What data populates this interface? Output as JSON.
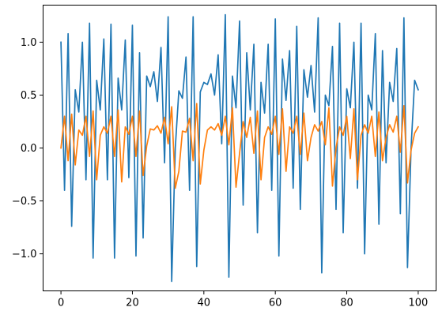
{
  "chart_data": {
    "type": "line",
    "title": "",
    "xlabel": "",
    "ylabel": "",
    "xlim": [
      -5,
      105
    ],
    "ylim": [
      -1.35,
      1.35
    ],
    "xticks": [
      0,
      20,
      40,
      60,
      80,
      100
    ],
    "yticks": [
      -1.0,
      -0.5,
      0.0,
      0.5,
      1.0
    ],
    "xtick_labels": [
      "0",
      "20",
      "40",
      "60",
      "80",
      "100"
    ],
    "ytick_labels": [
      "−1.0",
      "−0.5",
      "0.0",
      "0.5",
      "1.0"
    ],
    "grid": false,
    "legend": "none",
    "series": [
      {
        "color": "#1f77b4",
        "x": [
          0,
          1,
          2,
          3,
          4,
          5,
          6,
          7,
          8,
          9,
          10,
          11,
          12,
          13,
          14,
          15,
          16,
          17,
          18,
          19,
          20,
          21,
          22,
          23,
          24,
          25,
          26,
          27,
          28,
          29,
          30,
          31,
          32,
          33,
          34,
          35,
          36,
          37,
          38,
          39,
          40,
          41,
          42,
          43,
          44,
          45,
          46,
          47,
          48,
          49,
          50,
          51,
          52,
          53,
          54,
          55,
          56,
          57,
          58,
          59,
          60,
          61,
          62,
          63,
          64,
          65,
          66,
          67,
          68,
          69,
          70,
          71,
          72,
          73,
          74,
          75,
          76,
          77,
          78,
          79,
          80,
          81,
          82,
          83,
          84,
          85,
          86,
          87,
          88,
          89,
          90,
          91,
          92,
          93,
          94,
          95,
          96,
          97,
          98,
          99,
          100
        ],
        "y": [
          1.0,
          -0.4,
          1.08,
          -0.74,
          0.55,
          0.34,
          1.0,
          -0.3,
          1.18,
          -1.04,
          0.64,
          0.36,
          1.03,
          -0.3,
          1.17,
          -1.04,
          0.66,
          0.36,
          1.02,
          -0.28,
          1.16,
          -1.02,
          0.9,
          -0.85,
          0.68,
          0.58,
          0.72,
          0.44,
          0.95,
          -0.14,
          1.24,
          -1.26,
          0.0,
          0.54,
          0.47,
          0.86,
          -0.4,
          1.24,
          -1.12,
          0.53,
          0.62,
          0.6,
          0.7,
          0.5,
          0.88,
          0.04,
          1.26,
          -1.22,
          0.68,
          0.38,
          1.2,
          -0.54,
          0.9,
          0.36,
          0.98,
          -0.8,
          0.62,
          0.33,
          0.98,
          -0.4,
          1.22,
          -1.02,
          0.84,
          0.45,
          0.92,
          -0.38,
          1.15,
          -0.58,
          0.74,
          0.48,
          0.78,
          0.34,
          1.23,
          -1.18,
          0.5,
          0.4,
          0.96,
          -0.58,
          1.18,
          -0.8,
          0.56,
          0.38,
          1.0,
          -0.38,
          1.18,
          -1.0,
          0.5,
          0.36,
          1.08,
          -0.72,
          0.92,
          -0.14,
          0.62,
          0.44,
          0.94,
          -0.62,
          1.23,
          -1.13,
          0.0,
          0.64,
          0.55
        ]
      },
      {
        "color": "#ff7f0e",
        "x": [
          0,
          1,
          2,
          3,
          4,
          5,
          6,
          7,
          8,
          9,
          10,
          11,
          12,
          13,
          14,
          15,
          16,
          17,
          18,
          19,
          20,
          21,
          22,
          23,
          24,
          25,
          26,
          27,
          28,
          29,
          30,
          31,
          32,
          33,
          34,
          35,
          36,
          37,
          38,
          39,
          40,
          41,
          42,
          43,
          44,
          45,
          46,
          47,
          48,
          49,
          50,
          51,
          52,
          53,
          54,
          55,
          56,
          57,
          58,
          59,
          60,
          61,
          62,
          63,
          64,
          65,
          66,
          67,
          68,
          69,
          70,
          71,
          72,
          73,
          74,
          75,
          76,
          77,
          78,
          79,
          80,
          81,
          82,
          83,
          84,
          85,
          86,
          87,
          88,
          89,
          90,
          91,
          92,
          93,
          94,
          95,
          96,
          97,
          98,
          99,
          100
        ],
        "y": [
          0.0,
          0.3,
          -0.12,
          0.32,
          -0.16,
          0.17,
          0.12,
          0.3,
          -0.08,
          0.35,
          -0.3,
          0.12,
          0.2,
          0.14,
          0.3,
          -0.08,
          0.36,
          -0.32,
          0.2,
          0.13,
          0.3,
          -0.08,
          0.35,
          -0.26,
          0.02,
          0.18,
          0.17,
          0.21,
          0.14,
          0.29,
          0.04,
          0.39,
          -0.38,
          -0.22,
          0.16,
          0.15,
          0.28,
          -0.12,
          0.42,
          -0.34,
          -0.02,
          0.17,
          0.2,
          0.17,
          0.23,
          0.12,
          0.3,
          0.03,
          0.38,
          -0.37,
          -0.05,
          0.25,
          0.1,
          0.29,
          -0.05,
          0.35,
          -0.3,
          0.1,
          0.2,
          0.13,
          0.3,
          -0.06,
          0.37,
          -0.22,
          0.2,
          0.14,
          0.3,
          -0.06,
          0.33,
          -0.12,
          0.1,
          0.22,
          0.16,
          0.25,
          0.03,
          0.38,
          -0.36,
          0.0,
          0.2,
          0.12,
          0.3,
          -0.1,
          0.37,
          -0.3,
          0.12,
          0.22,
          0.14,
          0.3,
          -0.08,
          0.34,
          -0.12,
          0.1,
          0.22,
          0.15,
          0.3,
          -0.04,
          0.4,
          -0.33,
          -0.02,
          0.14,
          0.2
        ]
      }
    ]
  }
}
